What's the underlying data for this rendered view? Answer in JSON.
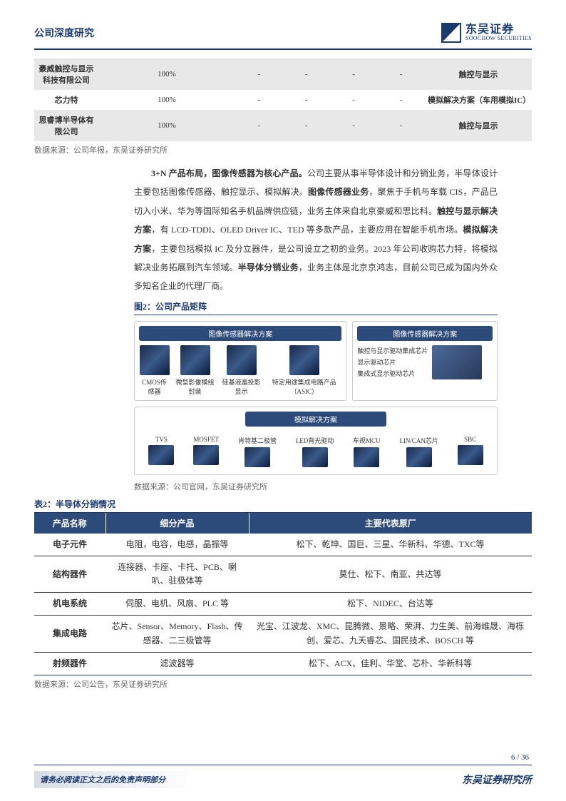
{
  "header": {
    "title": "公司深度研究",
    "logo_cn": "东吴证券",
    "logo_en": "SOOCHOW SECURITIES"
  },
  "table1": {
    "rows": [
      {
        "name": "豪威触控与显示科技有限公司",
        "pct": "100%",
        "c1": "-",
        "c2": "-",
        "c3": "-",
        "c4": "-",
        "desc": "触控与显示",
        "shade": true
      },
      {
        "name": "芯力特",
        "pct": "100%",
        "c1": "-",
        "c2": "-",
        "c3": "-",
        "c4": "-",
        "desc": "模拟解决方案（车用模拟IC）",
        "shade": false
      },
      {
        "name": "思睿博半导体有限公司",
        "pct": "100%",
        "c1": "-",
        "c2": "-",
        "c3": "-",
        "c4": "-",
        "desc": "触控与显示",
        "shade": true
      }
    ],
    "source": "数据来源：公司年报，东吴证券研究所"
  },
  "paragraph": {
    "lead": "3+N 产品布局，图像传感器为核心产品。",
    "t1": "公司主要从事半导体设计和分销业务，半导体设计主要包括图像传感器、触控显示、模拟解决。",
    "b2": "图像传感器业务",
    "t2": "，聚焦于手机与车载 CIS，产品已切入小米、华为等国际知名手机品牌供应链，业务主体来自北京豪威和思比科。",
    "b3": "触控与显示解决方案",
    "t3": "，有 LCD-TDDI、OLED Driver IC、TED 等多款产品，主要应用在智能手机市场。",
    "b4": "模拟解决方案",
    "t4": "，主要包括模拟 IC 及分立器件，是公司设立之初的业务。2023 年公司收购芯力特，将模拟解决业务拓展到汽车领域。",
    "b5": "半导体分销业务",
    "t5": "，业务主体是北京京鸿志，目前公司已成为国内外众多知名企业的代理厂商。"
  },
  "figure2": {
    "title": "图2：公司产品矩阵",
    "source": "数据来源：公司官网，东吴证券研究所",
    "card1_header": "图像传感器解决方案",
    "card1_items": [
      "CMOS传感器",
      "微型影像模组封装",
      "硅基液晶投影显示",
      "特定用途集成电路产品（ASIC）"
    ],
    "card2_header": "图像传感器解决方案",
    "card2_items": [
      "触控与显示驱动集成芯片",
      "显示驱动芯片",
      "集成式显示驱动芯片"
    ],
    "card3_header": "模拟解决方案",
    "card3_items": [
      "TVS",
      "MOSFET",
      "肖特基二极管",
      "LED背光驱动",
      "车规MCU",
      "LIN/CAN芯片",
      "SBC"
    ]
  },
  "table2": {
    "title": "表2：半导体分销情况",
    "columns": [
      "产品名称",
      "细分产品",
      "主要代表原厂"
    ],
    "rows": [
      {
        "name": "电子元件",
        "detail": "电阻，电容，电感，晶振等",
        "vendor": "松下、乾坤、国巨、三星、华新科、华德、TXC等"
      },
      {
        "name": "结构器件",
        "detail": "连接器、卡座、卡托、PCB、喇叭、驻极体等",
        "vendor": "莫仕、松下、南亚、共达等"
      },
      {
        "name": "机电系统",
        "detail": "伺服、电机、风扇、PLC 等",
        "vendor": "松下、NIDEC、台达等"
      },
      {
        "name": "集成电路",
        "detail": "芯片、Sensor、Memory、Flash、传感器、二三极管等",
        "vendor": "光宝、江波龙、XMC、昆腾微、景略、荣湃、力生美、前海维晟、海栎创、爱芯、九天睿芯、国民技术、BOSCH 等"
      },
      {
        "name": "射频器件",
        "detail": "滤波器等",
        "vendor": "松下、ACX、佳利、华堂、芯朴、华新科等"
      }
    ],
    "source": "数据来源：公司公告，东吴证券研究所"
  },
  "footer": {
    "page": "6 / 36",
    "left": "请务必阅读正文之后的免责声明部分",
    "right": "东吴证券研究所"
  }
}
